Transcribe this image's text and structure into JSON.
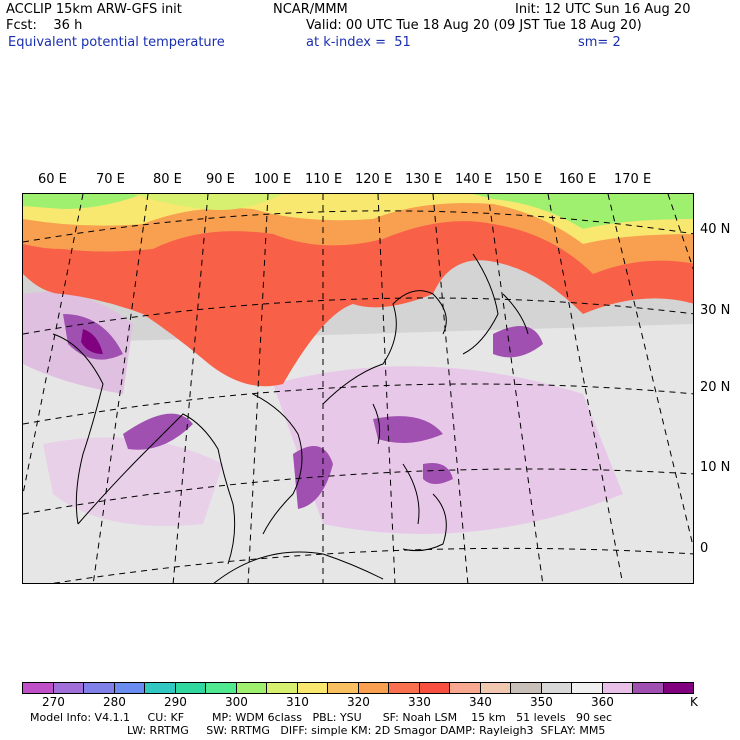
{
  "header": {
    "model_line": "ACCLIP 15km ARW-GFS init",
    "fcst_line": "Fcst:    36 h",
    "variable": "Equivalent potential temperature",
    "center": "NCAR/MMM",
    "init": "Init: 12 UTC Sun 16 Aug 20",
    "valid": "Valid: 00 UTC Tue 18 Aug 20 (09 JST Tue 18 Aug 20)",
    "level": "at k-index =  51",
    "smooth": "sm= 2"
  },
  "map": {
    "lon_labels": [
      "60 E",
      "70 E",
      "80 E",
      "90 E",
      "100 E",
      "110 E",
      "120 E",
      "130 E",
      "140 E",
      "150 E",
      "160 E",
      "170 E"
    ],
    "lat_labels": [
      "40 N",
      "30 N",
      "20 N",
      "10 N",
      "0"
    ]
  },
  "colorbar": {
    "colors": [
      "#c050c8",
      "#a070d8",
      "#8080e8",
      "#6a8cf0",
      "#30c8c0",
      "#30d8a0",
      "#50e890",
      "#a0f070",
      "#d8f070",
      "#f8e870",
      "#f8c060",
      "#f8a050",
      "#f87050",
      "#f85040",
      "#f8a890",
      "#f0c8b0",
      "#c8c0b8",
      "#d8d8d8",
      "#f0f0f0",
      "#e8c0e8",
      "#a050b0",
      "#800080"
    ],
    "tick_labels": [
      "270",
      "280",
      "290",
      "300",
      "310",
      "320",
      "330",
      "340",
      "350",
      "360"
    ],
    "unit": "K"
  },
  "footer": {
    "line1": "Model Info: V4.1.1     CU: KF        MP: WDM 6class   PBL: YSU      SF: Noah LSM    15 km   51 levels   90 sec",
    "line2": "LW: RRTMG     SW: RRTMG   DIFF: simple KM: 2D Smagor DAMP: Rayleigh3  SFLAY: MM5"
  }
}
